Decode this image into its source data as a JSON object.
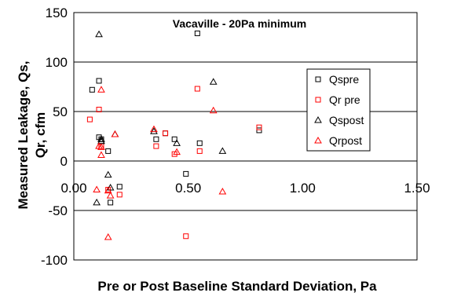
{
  "chart_data": {
    "type": "scatter",
    "title": "Vacaville - 20Pa minimum",
    "xlabel": "Pre or Post Baseline Standard Deviation, Pa",
    "ylabel": "Measured Leakage, Qs, Qr, cfm",
    "xlim": [
      0,
      1.5
    ],
    "ylim": [
      -100,
      150
    ],
    "xticks": [
      "0.00",
      "0.50",
      "1.00",
      "1.50"
    ],
    "yticks": [
      "150",
      "100",
      "50",
      "0",
      "-50",
      "-100"
    ],
    "grid": "horizontal",
    "legend_position": "right",
    "series": [
      {
        "name": "Qspre",
        "marker": "square",
        "color": "#000000",
        "points": [
          [
            0.08,
            72
          ],
          [
            0.11,
            81
          ],
          [
            0.11,
            24
          ],
          [
            0.12,
            22
          ],
          [
            0.12,
            20
          ],
          [
            0.15,
            10
          ],
          [
            0.16,
            -42
          ],
          [
            0.2,
            -26
          ],
          [
            0.36,
            22
          ],
          [
            0.4,
            28
          ],
          [
            0.44,
            22
          ],
          [
            0.49,
            -13
          ],
          [
            0.54,
            129
          ],
          [
            0.55,
            18
          ],
          [
            0.81,
            31
          ]
        ]
      },
      {
        "name": "Qr pre",
        "marker": "square",
        "color": "#ff0000",
        "points": [
          [
            0.07,
            42
          ],
          [
            0.11,
            52
          ],
          [
            0.12,
            15
          ],
          [
            0.15,
            -29
          ],
          [
            0.2,
            -34
          ],
          [
            0.36,
            15
          ],
          [
            0.4,
            28
          ],
          [
            0.44,
            7
          ],
          [
            0.49,
            -76
          ],
          [
            0.54,
            73
          ],
          [
            0.55,
            10
          ],
          [
            0.81,
            34
          ]
        ]
      },
      {
        "name": "Qspost",
        "marker": "triangle",
        "color": "#000000",
        "points": [
          [
            0.11,
            128
          ],
          [
            0.1,
            -42
          ],
          [
            0.12,
            22
          ],
          [
            0.12,
            20
          ],
          [
            0.15,
            -14
          ],
          [
            0.16,
            -27
          ],
          [
            0.18,
            27
          ],
          [
            0.35,
            30
          ],
          [
            0.45,
            18
          ],
          [
            0.61,
            80
          ],
          [
            0.65,
            10
          ]
        ]
      },
      {
        "name": "Qrpost",
        "marker": "triangle",
        "color": "#ff0000",
        "points": [
          [
            0.1,
            -29
          ],
          [
            0.12,
            72
          ],
          [
            0.11,
            15
          ],
          [
            0.12,
            14
          ],
          [
            0.12,
            6
          ],
          [
            0.15,
            -30
          ],
          [
            0.16,
            -35
          ],
          [
            0.15,
            -77
          ],
          [
            0.18,
            27
          ],
          [
            0.35,
            32
          ],
          [
            0.45,
            9
          ],
          [
            0.61,
            51
          ],
          [
            0.65,
            -31
          ]
        ]
      }
    ]
  }
}
